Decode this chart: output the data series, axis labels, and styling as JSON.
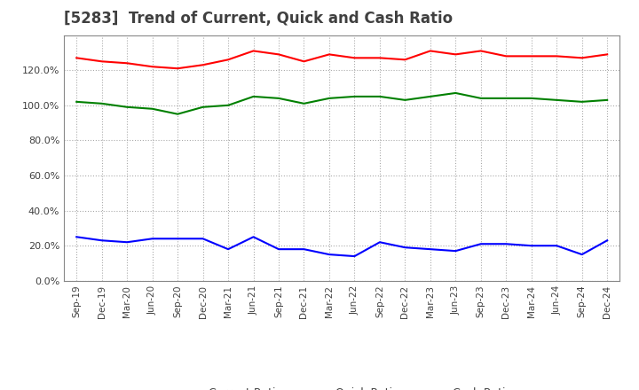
{
  "title": "[5283]  Trend of Current, Quick and Cash Ratio",
  "x_labels": [
    "Sep-19",
    "Dec-19",
    "Mar-20",
    "Jun-20",
    "Sep-20",
    "Dec-20",
    "Mar-21",
    "Jun-21",
    "Sep-21",
    "Dec-21",
    "Mar-22",
    "Jun-22",
    "Sep-22",
    "Dec-22",
    "Mar-23",
    "Jun-23",
    "Sep-23",
    "Dec-23",
    "Mar-24",
    "Jun-24",
    "Sep-24",
    "Dec-24"
  ],
  "current_ratio": [
    127,
    125,
    124,
    122,
    121,
    123,
    126,
    131,
    129,
    125,
    129,
    127,
    127,
    126,
    131,
    129,
    131,
    128,
    128,
    128,
    127,
    129
  ],
  "quick_ratio": [
    102,
    101,
    99,
    98,
    95,
    99,
    100,
    105,
    104,
    101,
    104,
    105,
    105,
    103,
    105,
    107,
    104,
    104,
    104,
    103,
    102,
    103
  ],
  "cash_ratio": [
    25,
    23,
    22,
    24,
    24,
    24,
    18,
    25,
    18,
    18,
    15,
    14,
    22,
    19,
    18,
    17,
    21,
    21,
    20,
    20,
    15,
    23
  ],
  "ylim": [
    0,
    140
  ],
  "yticks": [
    0,
    20,
    40,
    60,
    80,
    100,
    120
  ],
  "current_color": "#FF0000",
  "quick_color": "#008000",
  "cash_color": "#0000FF",
  "background_color": "#FFFFFF",
  "grid_color": "#AAAAAA",
  "title_color": "#404040",
  "legend_labels": [
    "Current Ratio",
    "Quick Ratio",
    "Cash Ratio"
  ]
}
